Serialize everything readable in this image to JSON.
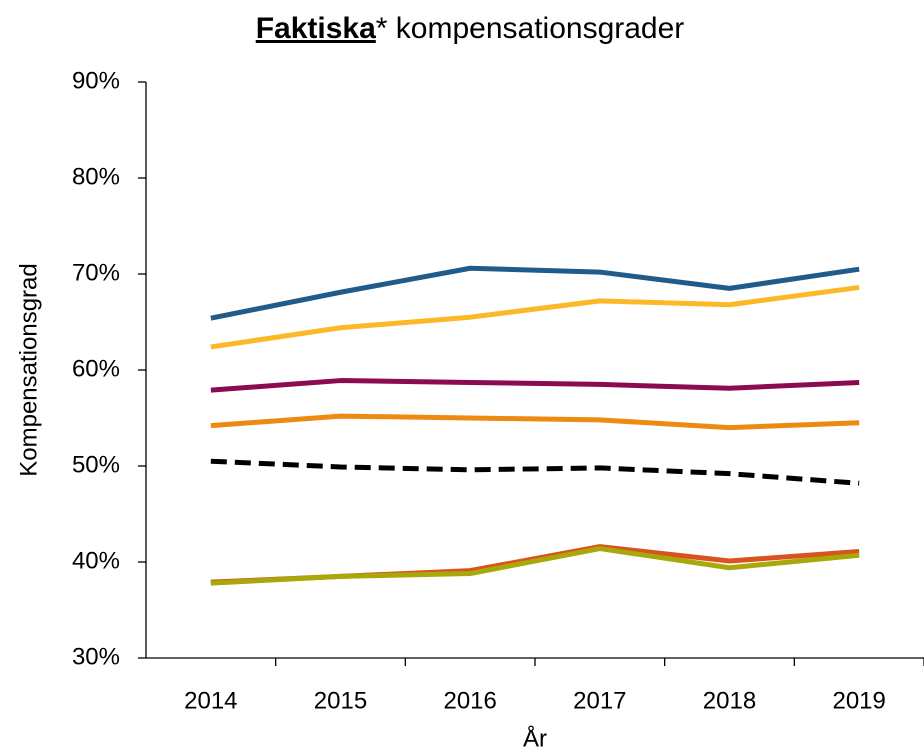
{
  "chart_data": {
    "type": "line",
    "title": {
      "emphasis": "Faktiska",
      "rest": "* kompensationsgrader"
    },
    "y_label": "Kompensationsgrad",
    "x_label": "År",
    "categories": [
      "2014",
      "2015",
      "2016",
      "2017",
      "2018",
      "2019"
    ],
    "ylim": [
      30,
      90
    ],
    "yticks": [
      {
        "value": 30,
        "label": "30%"
      },
      {
        "value": 40,
        "label": "40%"
      },
      {
        "value": 50,
        "label": "50%"
      },
      {
        "value": 60,
        "label": "60%"
      },
      {
        "value": 70,
        "label": "70%"
      },
      {
        "value": 80,
        "label": "80%"
      },
      {
        "value": 90,
        "label": "90%"
      }
    ],
    "series": [
      {
        "color": "#1f5c8b",
        "values": [
          65.4,
          68.1,
          70.6,
          70.2,
          68.5,
          70.5
        ]
      },
      {
        "color": "#fdb827",
        "values": [
          62.4,
          64.4,
          65.5,
          67.2,
          66.8,
          68.6
        ]
      },
      {
        "color": "#8b0a50",
        "values": [
          57.9,
          58.9,
          58.7,
          58.5,
          58.1,
          58.7
        ]
      },
      {
        "color": "#ee8a12",
        "values": [
          54.2,
          55.2,
          55.0,
          54.8,
          54.0,
          54.5
        ]
      },
      {
        "color": "#000000",
        "dash": true,
        "values": [
          50.5,
          49.9,
          49.6,
          49.8,
          49.2,
          48.2
        ]
      },
      {
        "color": "#d9531e",
        "values": [
          37.9,
          38.5,
          39.1,
          41.6,
          40.1,
          41.1
        ]
      },
      {
        "color": "#a8a80a",
        "values": [
          37.8,
          38.5,
          38.8,
          41.4,
          39.4,
          40.7
        ]
      }
    ]
  }
}
